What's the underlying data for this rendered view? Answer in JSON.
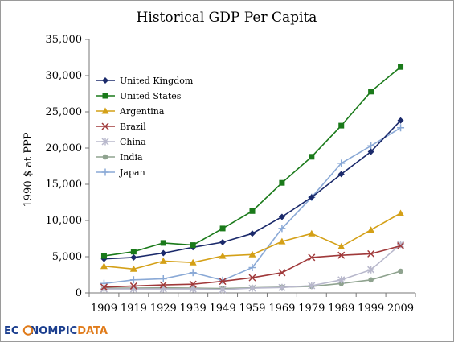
{
  "logo": {
    "part1": "EC",
    "part2": "NOMPIC",
    "part3": "DATA"
  },
  "chart_data": {
    "type": "line",
    "title": "Historical GDP Per Capita",
    "xlabel": "",
    "ylabel": "1990 $ at PPP",
    "x": [
      "1909",
      "1919",
      "1929",
      "1939",
      "1949",
      "1959",
      "1969",
      "1979",
      "1989",
      "1999",
      "2009"
    ],
    "ylim": [
      0,
      35000
    ],
    "yticks": [
      "0",
      "5,000",
      "10,000",
      "15,000",
      "20,000",
      "25,000",
      "30,000",
      "35,000"
    ],
    "legend_position": "top-left",
    "grid": false,
    "series": [
      {
        "name": "United Kingdom",
        "color": "#1b2a6b",
        "marker": "diamond",
        "values": [
          4700,
          4900,
          5500,
          6300,
          7000,
          8200,
          10500,
          13200,
          16400,
          19500,
          23800
        ]
      },
      {
        "name": "United States",
        "color": "#1a7a1a",
        "marker": "square",
        "values": [
          5100,
          5700,
          6900,
          6600,
          8900,
          11300,
          15200,
          18800,
          23100,
          27800,
          31200
        ]
      },
      {
        "name": "Argentina",
        "color": "#d4a017",
        "marker": "triangle",
        "values": [
          3700,
          3300,
          4400,
          4200,
          5100,
          5300,
          7100,
          8200,
          6400,
          8700,
          11000
        ]
      },
      {
        "name": "Brazil",
        "color": "#a0393a",
        "marker": "x",
        "values": [
          800,
          950,
          1100,
          1200,
          1600,
          2100,
          2800,
          4900,
          5200,
          5400,
          6500
        ]
      },
      {
        "name": "China",
        "color": "#b8b8cc",
        "marker": "star",
        "values": [
          550,
          550,
          550,
          560,
          450,
          650,
          750,
          1000,
          1800,
          3200,
          6700
        ]
      },
      {
        "name": "India",
        "color": "#8fa38f",
        "marker": "circle",
        "values": [
          650,
          650,
          700,
          650,
          600,
          700,
          800,
          900,
          1300,
          1800,
          3000
        ]
      },
      {
        "name": "Japan",
        "color": "#8aa9d6",
        "marker": "plus",
        "values": [
          1300,
          1800,
          1950,
          2800,
          1750,
          3500,
          8900,
          13200,
          17900,
          20300,
          22800
        ]
      }
    ]
  }
}
